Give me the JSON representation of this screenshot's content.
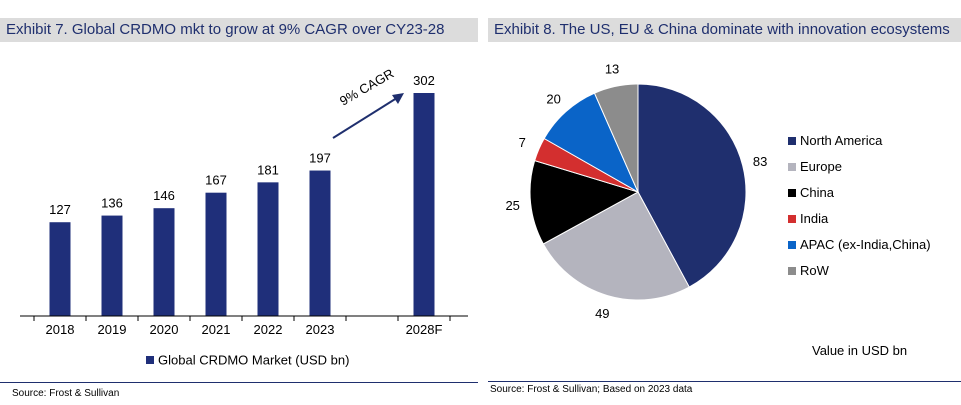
{
  "exhibits": [
    {
      "title": "Exhibit 7. Global CRDMO mkt to grow at 9% CAGR over CY23-28",
      "source": "Source: Frost & Sullivan",
      "annotation": "9% CAGR",
      "chart_data": {
        "type": "bar",
        "categories": [
          "2018",
          "2019",
          "2020",
          "2021",
          "2022",
          "2023",
          "2028F"
        ],
        "series": [
          {
            "name": "Global CRDMO Market (USD bn)",
            "values": [
              127,
              136,
              146,
              167,
              181,
              197,
              302
            ]
          }
        ],
        "title": "Exhibit 7. Global CRDMO mkt to grow at 9% CAGR over CY23-28",
        "xlabel": "",
        "ylabel": "",
        "ylim": [
          0,
          302
        ],
        "grid": false,
        "legend": "bottom",
        "data_labels": true,
        "color": "#1f2f7a"
      }
    },
    {
      "title": "Exhibit 8. The US, EU & China dominate with innovation ecosystems",
      "source": "Source: Frost & Sullivan; Based on 2023 data",
      "unit_note": "Value in USD bn",
      "chart_data": {
        "type": "pie",
        "categories": [
          "North America",
          "Europe",
          "China",
          "India",
          "APAC (ex-India,China)",
          "RoW"
        ],
        "values": [
          83,
          49,
          25,
          7,
          20,
          13
        ],
        "colors": [
          "#1f2f6e",
          "#b4b4be",
          "#000000",
          "#d32f2f",
          "#0a64c8",
          "#8c8c8c"
        ],
        "title": "Exhibit 8. The US, EU & China dominate with innovation ecosystems",
        "legend": "right",
        "data_labels": true
      }
    }
  ]
}
